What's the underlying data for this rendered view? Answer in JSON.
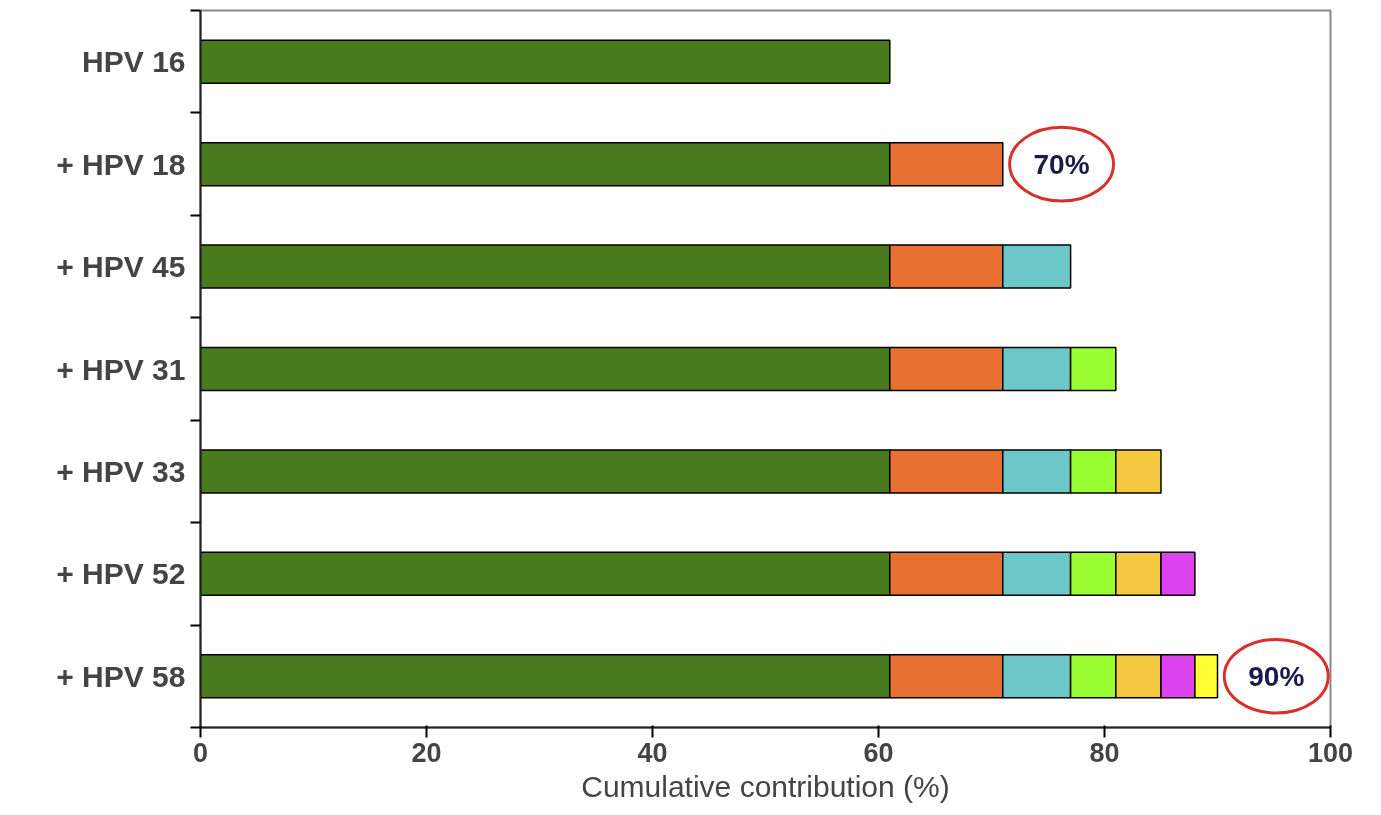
{
  "chart_data": {
    "type": "bar",
    "orientation": "horizontal",
    "stacked": true,
    "xlabel": "Cumulative contribution (%)",
    "categories": [
      "HPV 16",
      "+ HPV 18",
      "+ HPV 45",
      "+ HPV 31",
      "+ HPV 33",
      "+ HPV 52",
      "+ HPV 58"
    ],
    "series": [
      {
        "color": "#4a7a1e",
        "values": [
          61,
          61,
          61,
          61,
          61,
          61,
          61
        ]
      },
      {
        "color": "#e87033",
        "values": [
          null,
          10,
          10,
          10,
          10,
          10,
          10
        ]
      },
      {
        "color": "#6cc8c8",
        "values": [
          null,
          null,
          6,
          6,
          6,
          6,
          6
        ]
      },
      {
        "color": "#99ff33",
        "values": [
          null,
          null,
          null,
          4,
          4,
          4,
          4
        ]
      },
      {
        "color": "#f5c842",
        "values": [
          null,
          null,
          null,
          null,
          4,
          4,
          4
        ]
      },
      {
        "color": "#dd44ee",
        "values": [
          null,
          null,
          null,
          null,
          null,
          3,
          3
        ]
      },
      {
        "color": "#ffff33",
        "values": [
          null,
          null,
          null,
          null,
          null,
          null,
          2
        ]
      }
    ],
    "xlim": [
      0,
      100
    ],
    "xticks": [
      0,
      20,
      40,
      60,
      80,
      100
    ],
    "grid": false,
    "annotations": [
      "70%",
      "90%"
    ]
  }
}
